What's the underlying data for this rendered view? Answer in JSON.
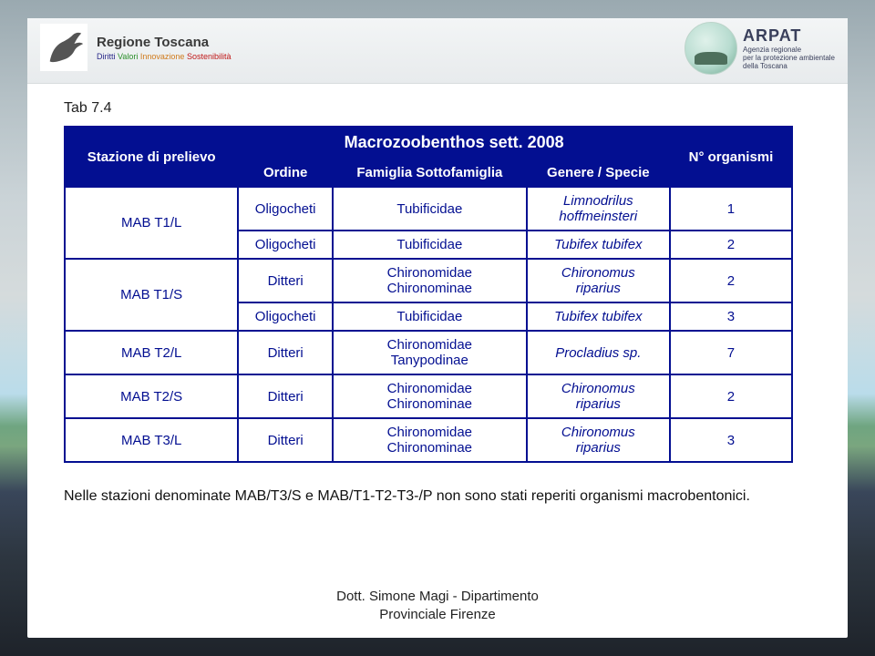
{
  "header": {
    "region_line1": "Regione Toscana",
    "region_line2_parts": [
      "Diritti",
      "Valori",
      "Innovazione",
      "Sostenibilità"
    ],
    "arpat_name": "ARPAT",
    "arpat_sub1": "Agenzia regionale",
    "arpat_sub2": "per la protezione ambientale",
    "arpat_sub3": "della Toscana"
  },
  "tab_label": "Tab 7.4",
  "table": {
    "title": "Macrozoobenthos sett. 2008",
    "head": {
      "stazione": "Stazione di prelievo",
      "ordine": "Ordine",
      "famiglia": "Famiglia Sottofamiglia",
      "genere": "Genere / Specie",
      "n": "N° organismi"
    },
    "rows": [
      {
        "station": "MAB T1/L",
        "station_rowspan": 2,
        "ordine": "Oligocheti",
        "famiglia": "Tubificidae",
        "genere": "Limnodrilus hoffmeinsteri",
        "n": "1",
        "italic": true
      },
      {
        "ordine": "Oligocheti",
        "famiglia": "Tubificidae",
        "genere": "Tubifex tubifex",
        "n": "2",
        "italic": true
      },
      {
        "station": "MAB T1/S",
        "station_rowspan": 2,
        "ordine": "Ditteri",
        "famiglia": "Chironomidae Chironominae",
        "genere": "Chironomus riparius",
        "n": "2",
        "italic": true
      },
      {
        "ordine": "Oligocheti",
        "famiglia": "Tubificidae",
        "genere": "Tubifex tubifex",
        "n": "3",
        "italic": true
      },
      {
        "station": "MAB T2/L",
        "station_rowspan": 1,
        "ordine": "Ditteri",
        "famiglia": "Chironomidae Tanypodinae",
        "genere": "Procladius sp.",
        "n": "7",
        "italic": true
      },
      {
        "station": "MAB T2/S",
        "station_rowspan": 1,
        "ordine": "Ditteri",
        "famiglia": "Chironomidae Chironominae",
        "genere": "Chironomus riparius",
        "n": "2",
        "italic": true
      },
      {
        "station": "MAB T3/L",
        "station_rowspan": 1,
        "ordine": "Ditteri",
        "famiglia": "Chironomidae Chironominae",
        "genere": "Chironomus riparius",
        "n": "3",
        "italic": true
      }
    ]
  },
  "caption": "Nelle stazioni denominate MAB/T3/S e MAB/T1-T2-T3-/P non sono stati reperiti organismi macrobentonici.",
  "footer_line1": "Dott. Simone Magi - Dipartimento",
  "footer_line2": "Provinciale Firenze",
  "colors": {
    "table_border": "#030f91",
    "table_header_bg": "#030f91",
    "table_header_fg": "#ffffff",
    "table_cell_fg": "#030f91"
  }
}
